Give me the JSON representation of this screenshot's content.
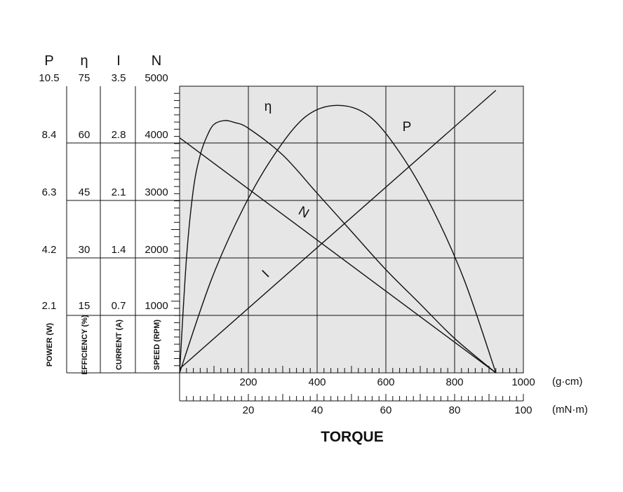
{
  "chart_data": {
    "type": "line",
    "title": "TORQUE",
    "x_axis_primary": {
      "unit": "(g·cm)",
      "range": [
        0,
        1000
      ],
      "tick_labels": [
        "200",
        "400",
        "600",
        "800",
        "1000"
      ],
      "tick_values": [
        200,
        400,
        600,
        800,
        1000
      ]
    },
    "x_axis_secondary": {
      "unit": "(mN·m)",
      "range": [
        0,
        100
      ],
      "tick_labels": [
        "20",
        "40",
        "60",
        "80",
        "100"
      ],
      "tick_values": [
        20,
        40,
        60,
        80,
        100
      ]
    },
    "y_axes": [
      {
        "symbol": "P",
        "label": "POWER (W)",
        "tick_labels": [
          "2.1",
          "4.2",
          "6.3",
          "8.4",
          "10.5"
        ],
        "range": [
          0,
          10.5
        ]
      },
      {
        "symbol": "η",
        "label": "EFFICIENCY (%)",
        "tick_labels": [
          "15",
          "30",
          "45",
          "60",
          "75"
        ],
        "range": [
          0,
          75
        ]
      },
      {
        "symbol": "I",
        "label": "CURRENT (A)",
        "tick_labels": [
          "0.7",
          "1.4",
          "2.1",
          "2.8",
          "3.5"
        ],
        "range": [
          0,
          3.5
        ]
      },
      {
        "symbol": "N",
        "label": "SPEED (RPM)",
        "tick_labels": [
          "1000",
          "2000",
          "3000",
          "4000",
          "5000"
        ],
        "range": [
          0,
          5000
        ]
      }
    ],
    "series": [
      {
        "name": "N",
        "axis": "N",
        "x": [
          0,
          920
        ],
        "y": [
          4100,
          0
        ]
      },
      {
        "name": "I",
        "axis": "I",
        "x": [
          0,
          920
        ],
        "y": [
          0.05,
          3.45
        ]
      },
      {
        "name": "P",
        "axis": "P",
        "x": [
          0,
          92,
          184,
          276,
          368,
          460,
          552,
          644,
          736,
          828,
          920
        ],
        "y": [
          0,
          3.4,
          6.0,
          8.0,
          9.4,
          9.8,
          9.4,
          8.0,
          6.0,
          3.4,
          0
        ]
      },
      {
        "name": "η",
        "axis": "η",
        "x": [
          0,
          20,
          40,
          60,
          80,
          100,
          130,
          160,
          200,
          300,
          400,
          500,
          600,
          700,
          800,
          920
        ],
        "y": [
          0,
          30,
          48,
          57,
          62,
          65,
          66,
          65.5,
          64,
          57,
          47,
          37,
          27,
          18,
          9,
          0
        ]
      }
    ],
    "curve_labels": [
      "η",
      "P",
      "N",
      "I"
    ],
    "grid": true
  }
}
